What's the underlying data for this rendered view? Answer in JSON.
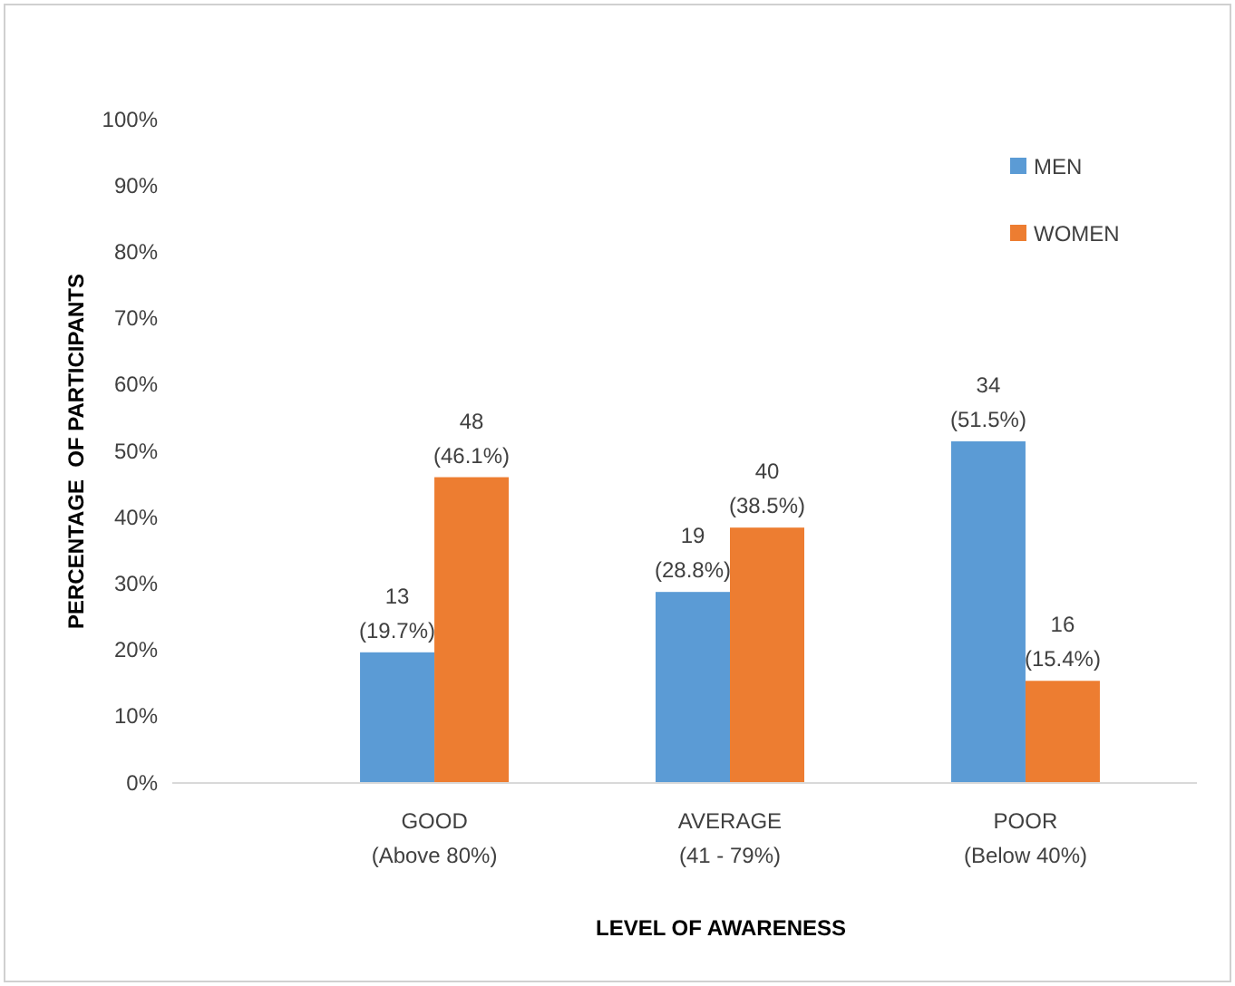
{
  "chart_data": {
    "type": "bar",
    "xlabel": "LEVEL OF AWARENESS",
    "ylabel": "PERCENTAGE  OF PARTICIPANTS",
    "categories": [
      "GOOD\n(Above 80%)",
      "AVERAGE\n(41 - 79%)",
      "POOR\n(Below 40%)"
    ],
    "series": [
      {
        "name": "MEN",
        "color": "#5b9bd5",
        "values": [
          19.7,
          28.8,
          51.5
        ],
        "value_labels": [
          "13\n(19.7%)",
          "19\n(28.8%)",
          "34\n(51.5%)"
        ]
      },
      {
        "name": "WOMEN",
        "color": "#ed7d31",
        "values": [
          46.1,
          38.5,
          15.4
        ],
        "value_labels": [
          "48\n(46.1%)",
          "40\n(38.5%)",
          "16\n(15.4%)"
        ]
      }
    ],
    "ylim": [
      0,
      100
    ],
    "yticks": [
      {
        "value": 0,
        "label": "0%"
      },
      {
        "value": 10,
        "label": "10%"
      },
      {
        "value": 20,
        "label": "20%"
      },
      {
        "value": 30,
        "label": "30%"
      },
      {
        "value": 40,
        "label": "40%"
      },
      {
        "value": 50,
        "label": "50%"
      },
      {
        "value": 60,
        "label": "60%"
      },
      {
        "value": 70,
        "label": "70%"
      },
      {
        "value": 80,
        "label": "80%"
      },
      {
        "value": 90,
        "label": "90%"
      },
      {
        "value": 100,
        "label": "100%"
      }
    ],
    "grid": false,
    "legend": "top right"
  }
}
